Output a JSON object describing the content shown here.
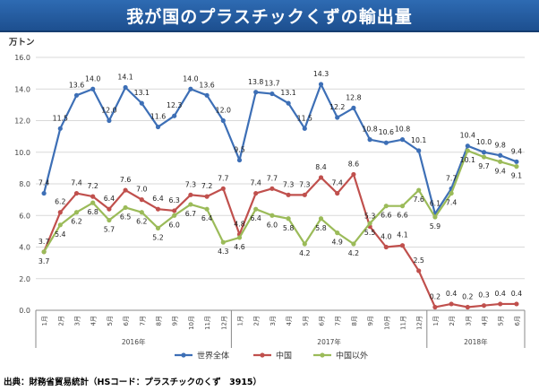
{
  "title": "我が国のプラスチックくずの輸出量",
  "source": "出典：財務省貿易統計（HSコード：プラスチックのくず　3915）",
  "chart_data": {
    "type": "line",
    "unit_label": "万トン",
    "ylim": [
      0,
      16
    ],
    "yticks": [
      "0.0",
      "2.0",
      "4.0",
      "6.0",
      "8.0",
      "10.0",
      "12.0",
      "14.0",
      "16.0"
    ],
    "grid": true,
    "legend_position": "bottom-center",
    "categories": [
      "1月",
      "2月",
      "3月",
      "4月",
      "5月",
      "6月",
      "7月",
      "8月",
      "9月",
      "10月",
      "11月",
      "12月",
      "1月",
      "2月",
      "3月",
      "4月",
      "5月",
      "6月",
      "7月",
      "8月",
      "9月",
      "10月",
      "11月",
      "12月",
      "1月",
      "2月",
      "3月",
      "4月",
      "5月",
      "6月"
    ],
    "year_groups": [
      {
        "label": "2016年",
        "start": 0,
        "end": 11
      },
      {
        "label": "2017年",
        "start": 12,
        "end": 23
      },
      {
        "label": "2018年",
        "start": 24,
        "end": 29
      }
    ],
    "series": [
      {
        "name": "世界全体",
        "color": "#3d6fb6",
        "values": [
          7.4,
          11.5,
          13.6,
          14.0,
          12.0,
          14.1,
          13.1,
          11.6,
          12.3,
          14.0,
          13.6,
          12.0,
          9.5,
          13.8,
          13.7,
          13.1,
          11.5,
          14.3,
          12.2,
          12.8,
          10.8,
          10.6,
          10.8,
          10.1,
          6.1,
          7.7,
          10.4,
          10.0,
          9.8,
          9.4
        ]
      },
      {
        "name": "中国",
        "color": "#c0504d",
        "values": [
          3.7,
          6.2,
          7.4,
          7.2,
          6.4,
          7.6,
          7.0,
          6.4,
          6.3,
          7.3,
          7.2,
          7.7,
          4.8,
          7.4,
          7.7,
          7.3,
          7.3,
          8.4,
          7.4,
          8.6,
          5.3,
          4.0,
          4.1,
          2.5,
          0.2,
          0.4,
          0.2,
          0.3,
          0.4,
          0.4
        ]
      },
      {
        "name": "中国以外",
        "color": "#9bbb59",
        "values": [
          3.7,
          5.4,
          6.2,
          6.8,
          5.7,
          6.5,
          6.2,
          5.2,
          6.0,
          6.7,
          6.4,
          4.3,
          4.6,
          6.4,
          6.0,
          5.8,
          4.2,
          5.8,
          4.9,
          4.2,
          5.5,
          6.6,
          6.6,
          7.6,
          5.9,
          7.4,
          10.1,
          9.7,
          9.4,
          9.1
        ]
      }
    ]
  }
}
